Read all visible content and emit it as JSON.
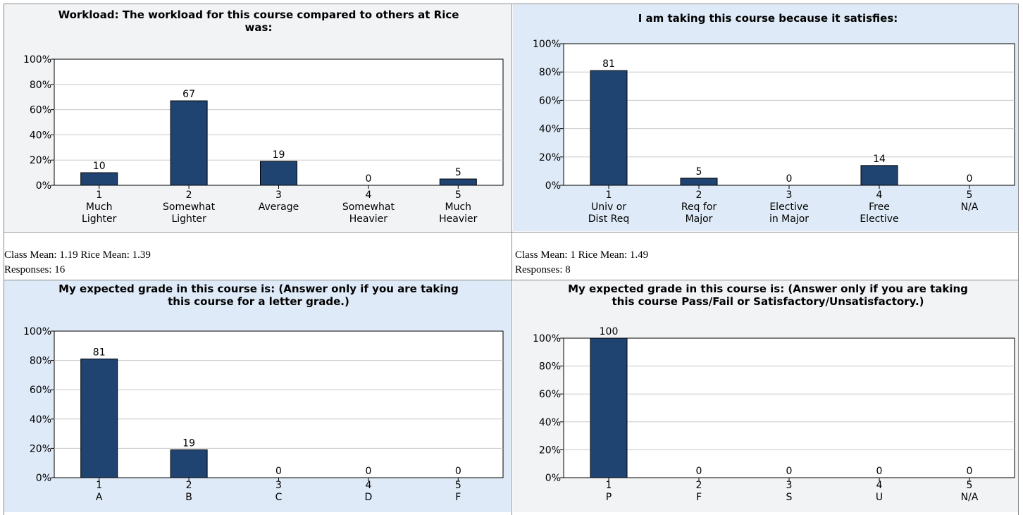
{
  "theme": {
    "bar_color": "#1f4472",
    "panel_bg_gray": "#f2f3f5",
    "panel_bg_blue": "#deeaf7"
  },
  "chart_data": [
    {
      "type": "bar",
      "title": "Workload: The workload for this course compared to others at Rice was:",
      "title_lines": [
        "Workload: The workload for this course compared to others at Rice",
        "was:"
      ],
      "categories": [
        [
          "1",
          "Much",
          "Lighter"
        ],
        [
          "2",
          "Somewhat",
          "Lighter"
        ],
        [
          "3",
          "Average"
        ],
        [
          "4",
          "Somewhat",
          "Heavier"
        ],
        [
          "5",
          "Much",
          "Heavier"
        ]
      ],
      "values": [
        10,
        67,
        19,
        0,
        5
      ],
      "yticks": [
        "100%",
        "80%",
        "60%",
        "40%",
        "20%",
        "0%"
      ],
      "ylim": [
        0,
        100
      ],
      "grid": true,
      "background": "gray"
    },
    {
      "type": "bar",
      "title": "I am taking this course because it satisfies:",
      "title_lines": [
        "I am taking this course because it satisfies:"
      ],
      "categories": [
        [
          "1",
          "Univ or",
          "Dist Req"
        ],
        [
          "2",
          "Req for",
          "Major"
        ],
        [
          "3",
          "Elective",
          "in Major"
        ],
        [
          "4",
          "Free",
          "Elective"
        ],
        [
          "5",
          "N/A"
        ]
      ],
      "values": [
        81,
        5,
        0,
        14,
        0
      ],
      "yticks": [
        "100%",
        "80%",
        "60%",
        "40%",
        "20%",
        "0%"
      ],
      "ylim": [
        0,
        100
      ],
      "grid": true,
      "background": "blue"
    },
    {
      "type": "bar",
      "title": "My expected grade in this course is: (Answer only if you are taking this course for a letter grade.)",
      "title_lines": [
        "My expected grade in this course is: (Answer only if you are taking",
        "this course for a letter grade.)"
      ],
      "categories": [
        [
          "1",
          "A"
        ],
        [
          "2",
          "B"
        ],
        [
          "3",
          "C"
        ],
        [
          "4",
          "D"
        ],
        [
          "5",
          "F"
        ]
      ],
      "values": [
        81,
        19,
        0,
        0,
        0
      ],
      "yticks": [
        "100%",
        "80%",
        "60%",
        "40%",
        "20%",
        "0%"
      ],
      "ylim": [
        0,
        100
      ],
      "grid": true,
      "background": "blue"
    },
    {
      "type": "bar",
      "title": "My expected grade in this course is: (Answer only if you are taking this course Pass/Fail or Satisfactory/Unsatisfactory.)",
      "title_lines": [
        "My expected grade in this course is: (Answer only if you are taking",
        "this course Pass/Fail or Satisfactory/Unsatisfactory.)"
      ],
      "categories": [
        [
          "1",
          "P"
        ],
        [
          "2",
          "F"
        ],
        [
          "3",
          "S"
        ],
        [
          "4",
          "U"
        ],
        [
          "5",
          "N/A"
        ]
      ],
      "values": [
        100,
        0,
        0,
        0,
        0
      ],
      "yticks": [
        "100%",
        "80%",
        "60%",
        "40%",
        "20%",
        "0%"
      ],
      "ylim": [
        0,
        100
      ],
      "grid": true,
      "background": "gray"
    }
  ],
  "stats": [
    {
      "means": "Class Mean: 1.19 Rice Mean: 1.39",
      "responses": "Responses: 16"
    },
    {
      "means": "Class Mean: 1 Rice Mean: 1.49",
      "responses": "Responses: 8"
    }
  ]
}
